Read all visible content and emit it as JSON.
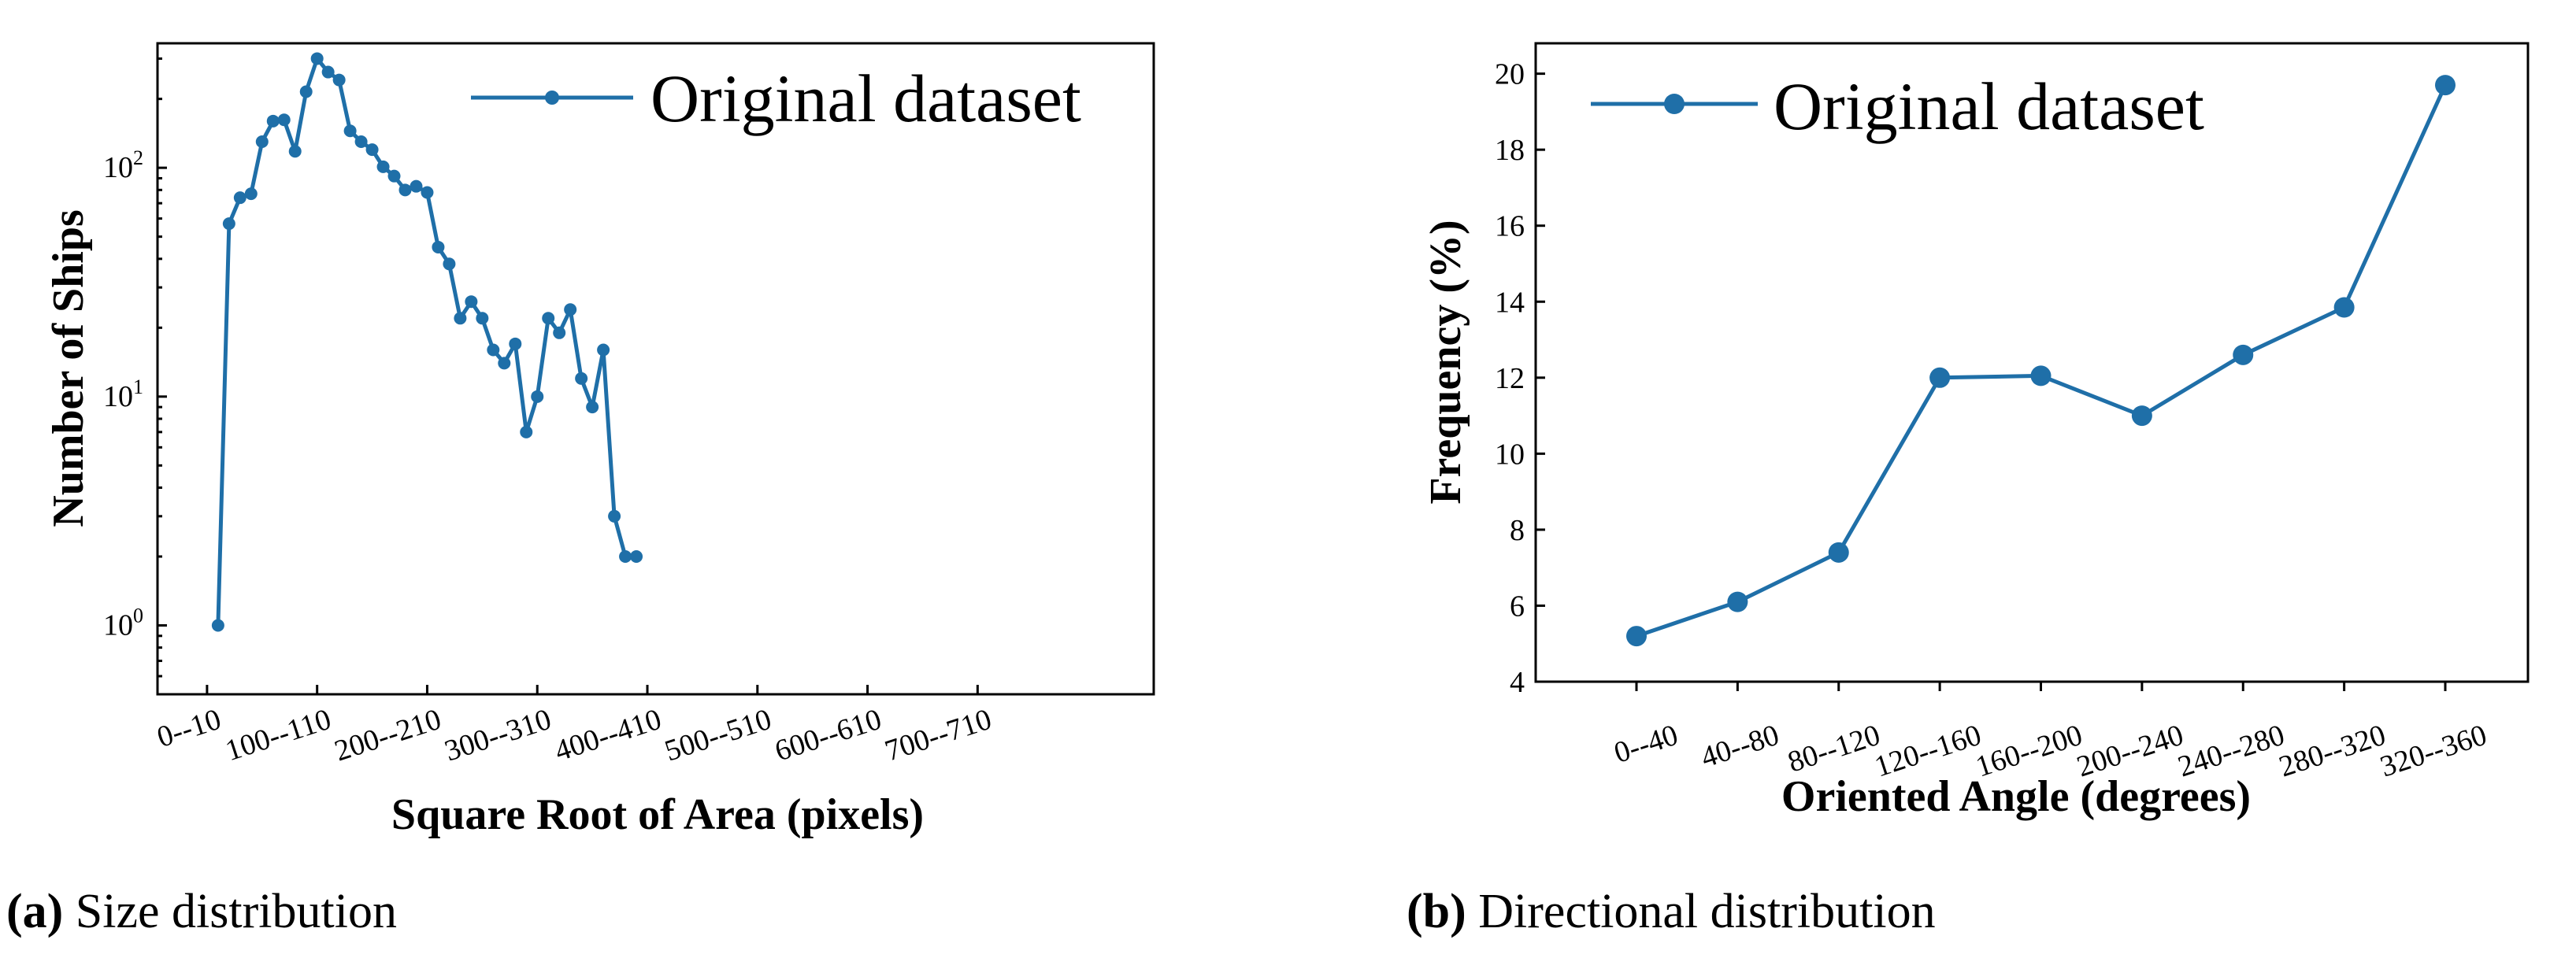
{
  "colors": {
    "series": "#1f6fa8",
    "axis": "#000000"
  },
  "chart_data": [
    {
      "type": "line",
      "yscale": "log",
      "title": "",
      "xlabel": "Square Root of Area (pixels)",
      "ylabel": "Number of  Ships",
      "xlim": [
        -45,
        860
      ],
      "ylim": [
        0.5,
        350
      ],
      "x_tick_values": [
        0,
        100,
        200,
        300,
        400,
        500,
        600,
        700
      ],
      "x_tick_labels": [
        "0--10",
        "100--110",
        "200--210",
        "300--310",
        "400--410",
        "500--510",
        "600--610",
        "700--710"
      ],
      "y_ticks": [
        {
          "value": 1,
          "base": "10",
          "exp": "0"
        },
        {
          "value": 10,
          "base": "10",
          "exp": "1"
        },
        {
          "value": 100,
          "base": "10",
          "exp": "2"
        }
      ],
      "legend": "Original dataset",
      "legend_position": "top-right",
      "x": [
        10,
        20,
        30,
        40,
        50,
        60,
        70,
        80,
        90,
        100,
        110,
        120,
        130,
        140,
        150,
        160,
        170,
        180,
        190,
        200,
        210,
        220,
        230,
        240,
        250,
        260,
        270,
        280,
        290,
        300,
        310,
        320,
        330,
        340,
        350,
        360,
        370,
        380,
        390
      ],
      "y": [
        1,
        57,
        74,
        77,
        130,
        160,
        162,
        118,
        215,
        300,
        262,
        242,
        145,
        130,
        120,
        101,
        92,
        80,
        83,
        78,
        45,
        38,
        22,
        26,
        22,
        16,
        14,
        17,
        7,
        10,
        22,
        19,
        24,
        12,
        9,
        16,
        3,
        2,
        2
      ],
      "caption_label": "(a)",
      "caption_text": "Size distribution"
    },
    {
      "type": "line",
      "title": "",
      "xlabel": "Oriented Angle (degrees)",
      "ylabel": "Frequency (%)",
      "ylim": [
        4,
        20.8
      ],
      "y_ticks": [
        4,
        6,
        8,
        10,
        12,
        14,
        16,
        18,
        20
      ],
      "categories": [
        "0--40",
        "40--80",
        "80--120",
        "120--160",
        "160--200",
        "200--240",
        "240--280",
        "280--320",
        "320--360"
      ],
      "values": [
        5.2,
        6.1,
        7.4,
        12.0,
        12.05,
        11.0,
        12.6,
        13.85,
        19.7
      ],
      "legend": "Original dataset",
      "legend_position": "top-left",
      "caption_label": "(b)",
      "caption_text": "Directional distribution"
    }
  ]
}
